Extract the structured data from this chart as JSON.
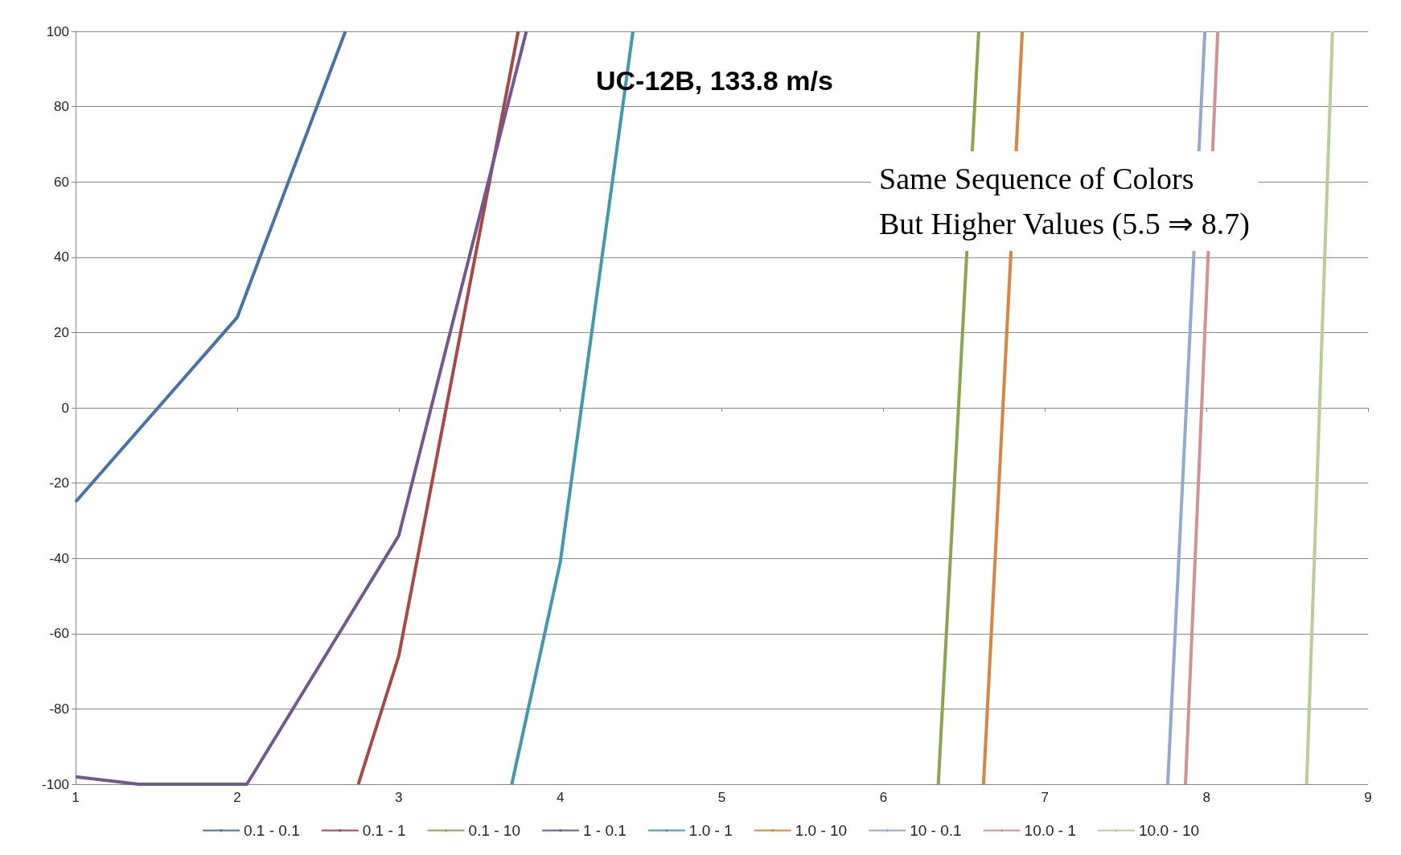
{
  "chart_data": {
    "type": "line",
    "title": "UC-12B, 133.8 m/s",
    "annotations": [
      "Same Sequence of Colors\nBut Higher Values (5.5 ⇒ 8.7)"
    ],
    "series": [
      {
        "name": "0.1 - 0.1",
        "color": "#4572a7",
        "x": [
          1,
          2,
          2.67
        ],
        "values": [
          -25,
          24,
          100
        ]
      },
      {
        "name": "0.1 - 1",
        "color": "#aa4643",
        "x": [
          2.75,
          3,
          3.74
        ],
        "values": [
          -100,
          -66,
          100
        ]
      },
      {
        "name": "0.1 - 10",
        "color": "#89a54e",
        "x": [
          6.34,
          6.59
        ],
        "values": [
          -100,
          100
        ]
      },
      {
        "name": "1 - 0.1",
        "color": "#71588f",
        "x": [
          1,
          1.39,
          2.06,
          3,
          3.79
        ],
        "values": [
          -98,
          -100,
          -100,
          -34,
          100
        ]
      },
      {
        "name": "1.0 - 1",
        "color": "#4198af",
        "x": [
          3.7,
          4,
          4.45
        ],
        "values": [
          -100,
          -41,
          100
        ]
      },
      {
        "name": "1.0 - 10",
        "color": "#db843d",
        "x": [
          6.62,
          6.86
        ],
        "values": [
          -100,
          100
        ]
      },
      {
        "name": "10 - 0.1",
        "color": "#93a9cf",
        "x": [
          7.76,
          7.99
        ],
        "values": [
          -100,
          100
        ]
      },
      {
        "name": "10.0 - 1",
        "color": "#d19392",
        "x": [
          7.87,
          8.07
        ],
        "values": [
          -100,
          100
        ]
      },
      {
        "name": "10.0 - 10",
        "color": "#b9cd96",
        "x": [
          8.62,
          8.78
        ],
        "values": [
          -100,
          100
        ]
      }
    ],
    "xlim": [
      1,
      9
    ],
    "xticks": [
      1,
      2,
      3,
      4,
      5,
      6,
      7,
      8,
      9
    ],
    "ylim": [
      -100,
      100
    ],
    "yticks": [
      -100,
      -80,
      -60,
      -40,
      -20,
      0,
      20,
      40,
      60,
      80,
      100
    ],
    "grid": "y",
    "legend": "bottom",
    "marker": "none",
    "line_style": "solid"
  }
}
